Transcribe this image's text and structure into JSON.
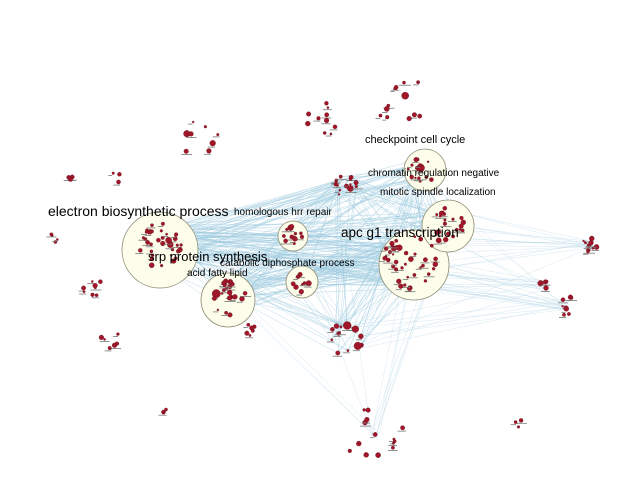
{
  "diagram": {
    "type": "enrichment-network",
    "colors": {
      "background": "#ffffff",
      "node": "#a0172a",
      "edge": "#9fcbe0",
      "cluster_fill": "#fdfdeb",
      "cluster_stroke": "#8a8a70"
    },
    "clusters": [
      {
        "label": "electron biosynthetic process"
      },
      {
        "label": "srp protein synthesis"
      },
      {
        "label": "acid fatty lipid"
      },
      {
        "label": "homologous hrr repair"
      },
      {
        "label": "catabolic diphosphate process"
      },
      {
        "label": "apc g1 transcription"
      },
      {
        "label": "checkpoint cell cycle"
      },
      {
        "label": "chromatin regulation negative"
      },
      {
        "label": "mitotic spindle localization"
      }
    ]
  }
}
